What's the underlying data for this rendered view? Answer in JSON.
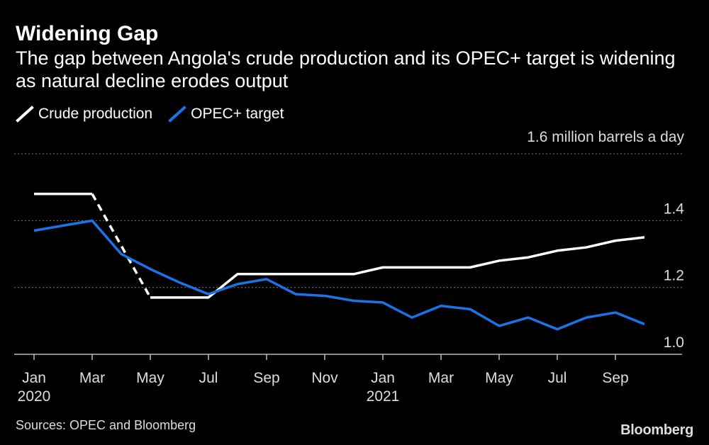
{
  "chart_data": {
    "type": "line",
    "title": "Widening Gap",
    "subtitle": "The gap between Angola's crude production and its OPEC+ target is widening as natural decline erodes output",
    "ylabel": "1.6 million barrels a day",
    "ylim": [
      1.0,
      1.6
    ],
    "yticks": [
      "1.4",
      "1.2",
      "1.0"
    ],
    "xticks": [
      {
        "label": "Jan",
        "year": "2020"
      },
      {
        "label": "Mar",
        "year": ""
      },
      {
        "label": "May",
        "year": ""
      },
      {
        "label": "Jul",
        "year": ""
      },
      {
        "label": "Sep",
        "year": ""
      },
      {
        "label": "Nov",
        "year": ""
      },
      {
        "label": "Jan",
        "year": "2021"
      },
      {
        "label": "Mar",
        "year": ""
      },
      {
        "label": "May",
        "year": ""
      },
      {
        "label": "Jul",
        "year": ""
      },
      {
        "label": "Sep",
        "year": ""
      }
    ],
    "x": [
      "Jan 2020",
      "Feb 2020",
      "Mar 2020",
      "Apr 2020",
      "May 2020",
      "Jun 2020",
      "Jul 2020",
      "Aug 2020",
      "Sep 2020",
      "Oct 2020",
      "Nov 2020",
      "Dec 2020",
      "Jan 2021",
      "Feb 2021",
      "Mar 2021",
      "Apr 2021",
      "May 2021",
      "Jun 2021",
      "Jul 2021",
      "Aug 2021",
      "Sep 2021",
      "Oct 2021"
    ],
    "series": [
      {
        "name": "Crude production",
        "color": "#ffffff",
        "values": [
          1.48,
          1.48,
          1.48,
          null,
          1.17,
          1.17,
          1.17,
          1.24,
          1.24,
          1.24,
          1.24,
          1.24,
          1.26,
          1.26,
          1.26,
          1.26,
          1.28,
          1.29,
          1.31,
          1.32,
          1.34,
          1.35
        ],
        "estimated_segment": {
          "from": "Mar 2020",
          "to": "May 2020",
          "style": "dashed"
        }
      },
      {
        "name": "OPEC+ target",
        "color": "#1a73e8",
        "values": [
          1.37,
          1.385,
          1.4,
          1.3,
          1.255,
          1.215,
          1.18,
          1.21,
          1.225,
          1.18,
          1.175,
          1.16,
          1.155,
          1.11,
          1.145,
          1.135,
          1.085,
          1.11,
          1.075,
          1.11,
          1.125,
          1.09
        ]
      }
    ]
  },
  "source": "Sources: OPEC and Bloomberg",
  "brand": "Bloomberg"
}
